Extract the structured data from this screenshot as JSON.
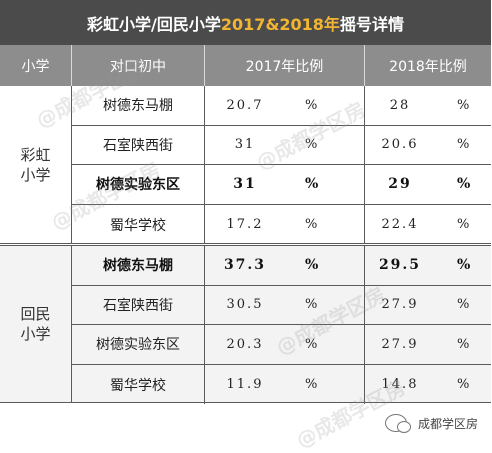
{
  "title": {
    "prefix": "彩虹小学/回民小学",
    "highlight": "2017&2018年",
    "suffix": "摇号详情"
  },
  "header": {
    "school": "小学",
    "middle": "对口初中",
    "y2017": "2017年比例",
    "y2018": "2018年比例"
  },
  "groups": [
    {
      "school": "彩虹小学",
      "rows": [
        {
          "middle": "树德东马棚",
          "v2017": "20.7",
          "v2018": "28",
          "unit": "%",
          "bold": false
        },
        {
          "middle": "石室陕西街",
          "v2017": "31",
          "v2018": "20.6",
          "unit": "%",
          "bold": false
        },
        {
          "middle": "树德实验东区",
          "v2017": "31",
          "v2018": "29",
          "unit": "%",
          "bold": true
        },
        {
          "middle": "蜀华学校",
          "v2017": "17.2",
          "v2018": "22.4",
          "unit": "%",
          "bold": false
        }
      ]
    },
    {
      "school": "回民小学",
      "rows": [
        {
          "middle": "树德东马棚",
          "v2017": "37.3",
          "v2018": "29.5",
          "unit": "%",
          "bold": true
        },
        {
          "middle": "石室陕西街",
          "v2017": "30.5",
          "v2018": "27.9",
          "unit": "%",
          "bold": false
        },
        {
          "middle": "树德实验东区",
          "v2017": "20.3",
          "v2018": "27.9",
          "unit": "%",
          "bold": false
        },
        {
          "middle": "蜀华学校",
          "v2017": "11.9",
          "v2018": "14.8",
          "unit": "%",
          "bold": false
        }
      ]
    }
  ],
  "watermark": "@成都学区房",
  "footer": {
    "account": "成都学区房"
  },
  "colors": {
    "title_bg": "#4b4b4b",
    "header_bg": "#8d8d8d",
    "highlight": "#f2b533"
  }
}
